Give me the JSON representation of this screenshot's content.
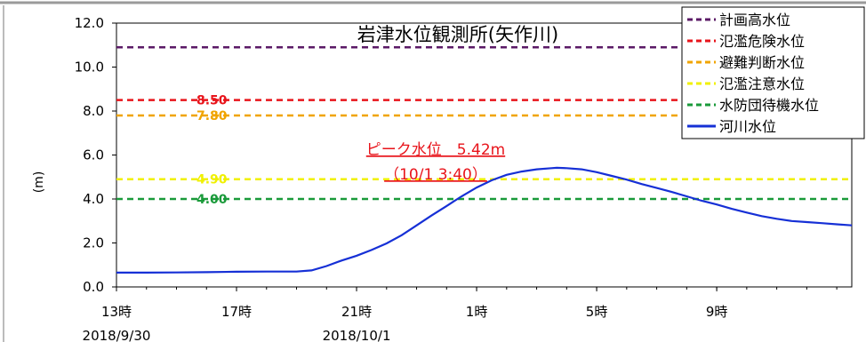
{
  "chart_data": {
    "type": "line",
    "title": "岩津水位観測所(矢作川)",
    "ylabel": "(m)",
    "ylim": [
      0,
      12
    ],
    "yticks": [
      "0.0",
      "2.0",
      "4.0",
      "6.0",
      "8.0",
      "10.0",
      "12.0"
    ],
    "xlim": [
      13,
      37.5
    ],
    "xticks": [
      {
        "x": 13,
        "label": "13時"
      },
      {
        "x": 17,
        "label": "17時"
      },
      {
        "x": 21,
        "label": "21時"
      },
      {
        "x": 25,
        "label": "1時"
      },
      {
        "x": 29,
        "label": "5時"
      },
      {
        "x": 33,
        "label": "9時"
      }
    ],
    "dates": [
      {
        "x": 13,
        "label": "2018/9/30"
      },
      {
        "x": 21,
        "label": "2018/10/1"
      }
    ],
    "grid": false,
    "legend_position": "top-right",
    "thresholds": [
      {
        "name": "計画高水位",
        "value": 10.9,
        "color": "#5b1a66",
        "label": ""
      },
      {
        "name": "氾濫危険水位",
        "value": 8.5,
        "color": "#e8141b",
        "label": "8.50"
      },
      {
        "name": "避難判断水位",
        "value": 7.8,
        "color": "#f0a400",
        "label": "7.80"
      },
      {
        "name": "氾濫注意水位",
        "value": 4.9,
        "color": "#f0f000",
        "label": "4.90"
      },
      {
        "name": "水防団待機水位",
        "value": 4.0,
        "color": "#1a9a3a",
        "label": "4.00"
      }
    ],
    "series": [
      {
        "name": "河川水位",
        "color": "#1630d6",
        "x": [
          13,
          14,
          15,
          16,
          17,
          18,
          19,
          19.5,
          20,
          20.5,
          21,
          21.5,
          22,
          22.5,
          23,
          23.5,
          24,
          24.5,
          25,
          25.5,
          26,
          26.5,
          27,
          27.5,
          27.67,
          28,
          28.5,
          29,
          29.5,
          30,
          30.5,
          31,
          31.5,
          32,
          32.5,
          33,
          33.5,
          34,
          34.5,
          35,
          35.5,
          36,
          36.5,
          37,
          37.5
        ],
        "values": [
          0.65,
          0.65,
          0.66,
          0.67,
          0.69,
          0.7,
          0.7,
          0.75,
          0.95,
          1.2,
          1.42,
          1.68,
          1.98,
          2.35,
          2.8,
          3.25,
          3.68,
          4.12,
          4.52,
          4.85,
          5.1,
          5.25,
          5.35,
          5.4,
          5.42,
          5.4,
          5.35,
          5.22,
          5.05,
          4.88,
          4.68,
          4.5,
          4.32,
          4.12,
          3.92,
          3.75,
          3.55,
          3.38,
          3.22,
          3.1,
          3.0,
          2.95,
          2.9,
          2.85,
          2.8
        ]
      }
    ],
    "annotation": {
      "line1": "ピーク水位　5.42m",
      "line2": "（10/1 3:40）"
    }
  }
}
